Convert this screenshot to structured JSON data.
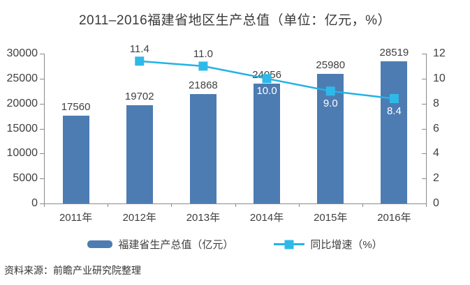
{
  "title": "2011–2016福建省地区生产总值（单位：亿元，%）",
  "source": "资料来源：前瞻产业研究院整理",
  "colors": {
    "bar": "#4D7CB2",
    "line": "#22B2E4",
    "marker": "#2FB9E9",
    "text": "#3F3F3F",
    "axis": "#8A8A8A",
    "label_on_bar": "#FFFFFF"
  },
  "chart_data": {
    "type": "bar",
    "title": "2011–2016福建省地区生产总值（单位：亿元，%）",
    "categories": [
      "2011年",
      "2012年",
      "2013年",
      "2014年",
      "2015年",
      "2016年"
    ],
    "series": [
      {
        "name": "福建省生产总值（亿元）",
        "type": "bar",
        "axis": "left",
        "values": [
          17560,
          19702,
          21868,
          24056,
          25980,
          28519
        ],
        "labels": [
          "17560",
          "19702",
          "21868",
          "24056",
          "25980",
          "28519"
        ]
      },
      {
        "name": "同比增速（%）",
        "type": "line",
        "axis": "right",
        "values": [
          null,
          11.4,
          11.0,
          10.0,
          9.0,
          8.4
        ],
        "labels": [
          "",
          "11.4",
          "11.0",
          "10.0",
          "9.0",
          "8.4"
        ]
      }
    ],
    "left_axis": {
      "min": 0,
      "max": 30000,
      "step": 5000,
      "tick_labels": [
        "0",
        "5000",
        "10000",
        "15000",
        "20000",
        "25000",
        "30000"
      ]
    },
    "right_axis": {
      "min": 0,
      "max": 12,
      "step": 2,
      "tick_labels": [
        "0",
        "2",
        "4",
        "6",
        "8",
        "10",
        "12"
      ]
    },
    "grid": false,
    "legend_position": "bottom",
    "legend": [
      "福建省生产总值（亿元）",
      "同比增速（%）"
    ]
  }
}
